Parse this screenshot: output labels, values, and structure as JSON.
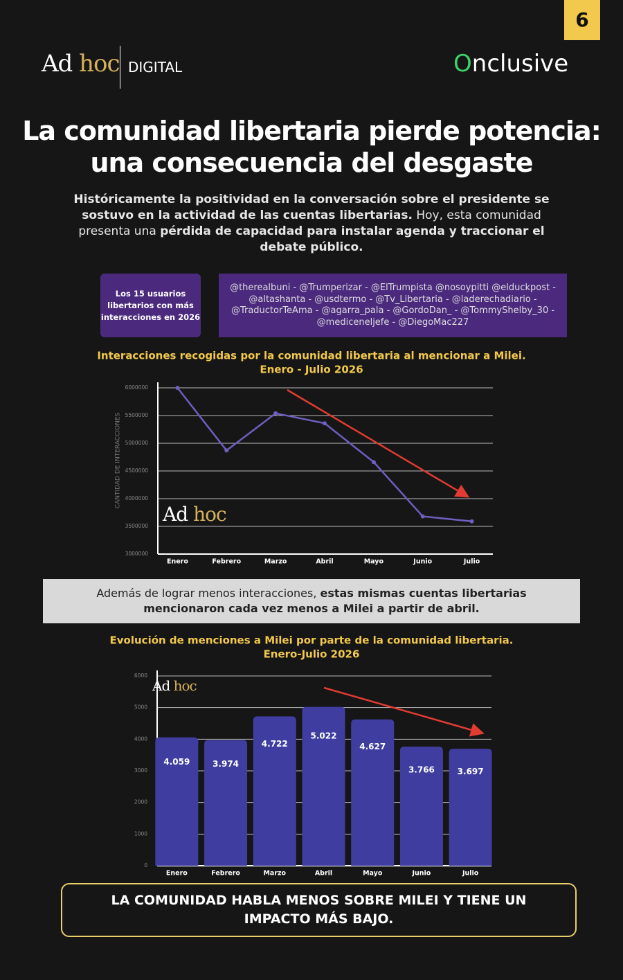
{
  "page_number": "6",
  "header": {
    "logo_left": "Ad",
    "logo_left_accent": "hoc",
    "logo_left_sub": "DIGITAL",
    "logo_right_accent": "O",
    "logo_right": "nclusive"
  },
  "title": "La comunidad libertaria pierde potencia: una consecuencia del desgaste",
  "intro": [
    "Históricamente la positividad en la conversación sobre el presidente se sostuvo en la actividad de las cuentas libertarias.",
    " Hoy, esta comunidad presenta una ",
    "pérdida de capacidad para instalar agenda y traccionar el debate público."
  ],
  "accounts": {
    "label": "Los 15 usuarios libertarios con más interacciones en 2026",
    "handles": "@therealbuni - @Trumperizar - @ElTrumpista @nosoypitti @elduckpost - @altashanta - @usdtermo - @Tv_Libertaria - @laderechadiario - @TraductorTeAma - @agarra_pala - @GordoDan_ - @TommyShelby_30 - @mediceneljefe - @DiegoMac227"
  },
  "note": [
    "Además de lograr menos interacciones, ",
    "estas mismas cuentas libertarias mencionaron cada vez menos a Milei a partir de abril."
  ],
  "conclusion": "LA COMUNIDAD HABLA MENOS SOBRE MILEI Y TIENE UN IMPACTO MÁS BAJO.",
  "chart_data": [
    {
      "type": "line",
      "title": "Interacciones recogidas por la comunidad libertaria al mencionar a Milei.",
      "subtitle": "Enero - Julio 2026",
      "y_label": "CANTIDAD DE INTERACCIONES",
      "watermark": "Ad",
      "watermark_accent": "hoc",
      "categories": [
        "Enero",
        "Febrero",
        "Marzo",
        "Abril",
        "Mayo",
        "Junio",
        "Julio"
      ],
      "values": [
        6000000,
        4870000,
        5540000,
        5360000,
        4660000,
        3680000,
        3590000
      ],
      "color": "#6e5fc0",
      "ylim": [
        3000000,
        6000000
      ],
      "yticks": [
        3000000,
        3500000,
        4000000,
        4500000,
        5000000,
        5500000,
        6000000
      ],
      "grid": true
    },
    {
      "type": "bar",
      "title": "Evolución de menciones a Milei por parte de la comunidad libertaria.",
      "subtitle": "Enero-Julio 2026",
      "watermark": "Ad",
      "watermark_accent": "hoc",
      "categories": [
        "Enero",
        "Febrero",
        "Marzo",
        "Abril",
        "Mayo",
        "Junio",
        "Julio"
      ],
      "values": [
        4059,
        3974,
        4722,
        5022,
        4627,
        3766,
        3697
      ],
      "value_labels": [
        "4.059",
        "3.974",
        "4.722",
        "5.022",
        "4.627",
        "3.766",
        "3.697"
      ],
      "color": "#3f3ea0",
      "ylim": [
        0,
        6000
      ],
      "yticks": [
        0,
        1000,
        2000,
        3000,
        4000,
        5000,
        6000
      ],
      "grid": true
    }
  ]
}
